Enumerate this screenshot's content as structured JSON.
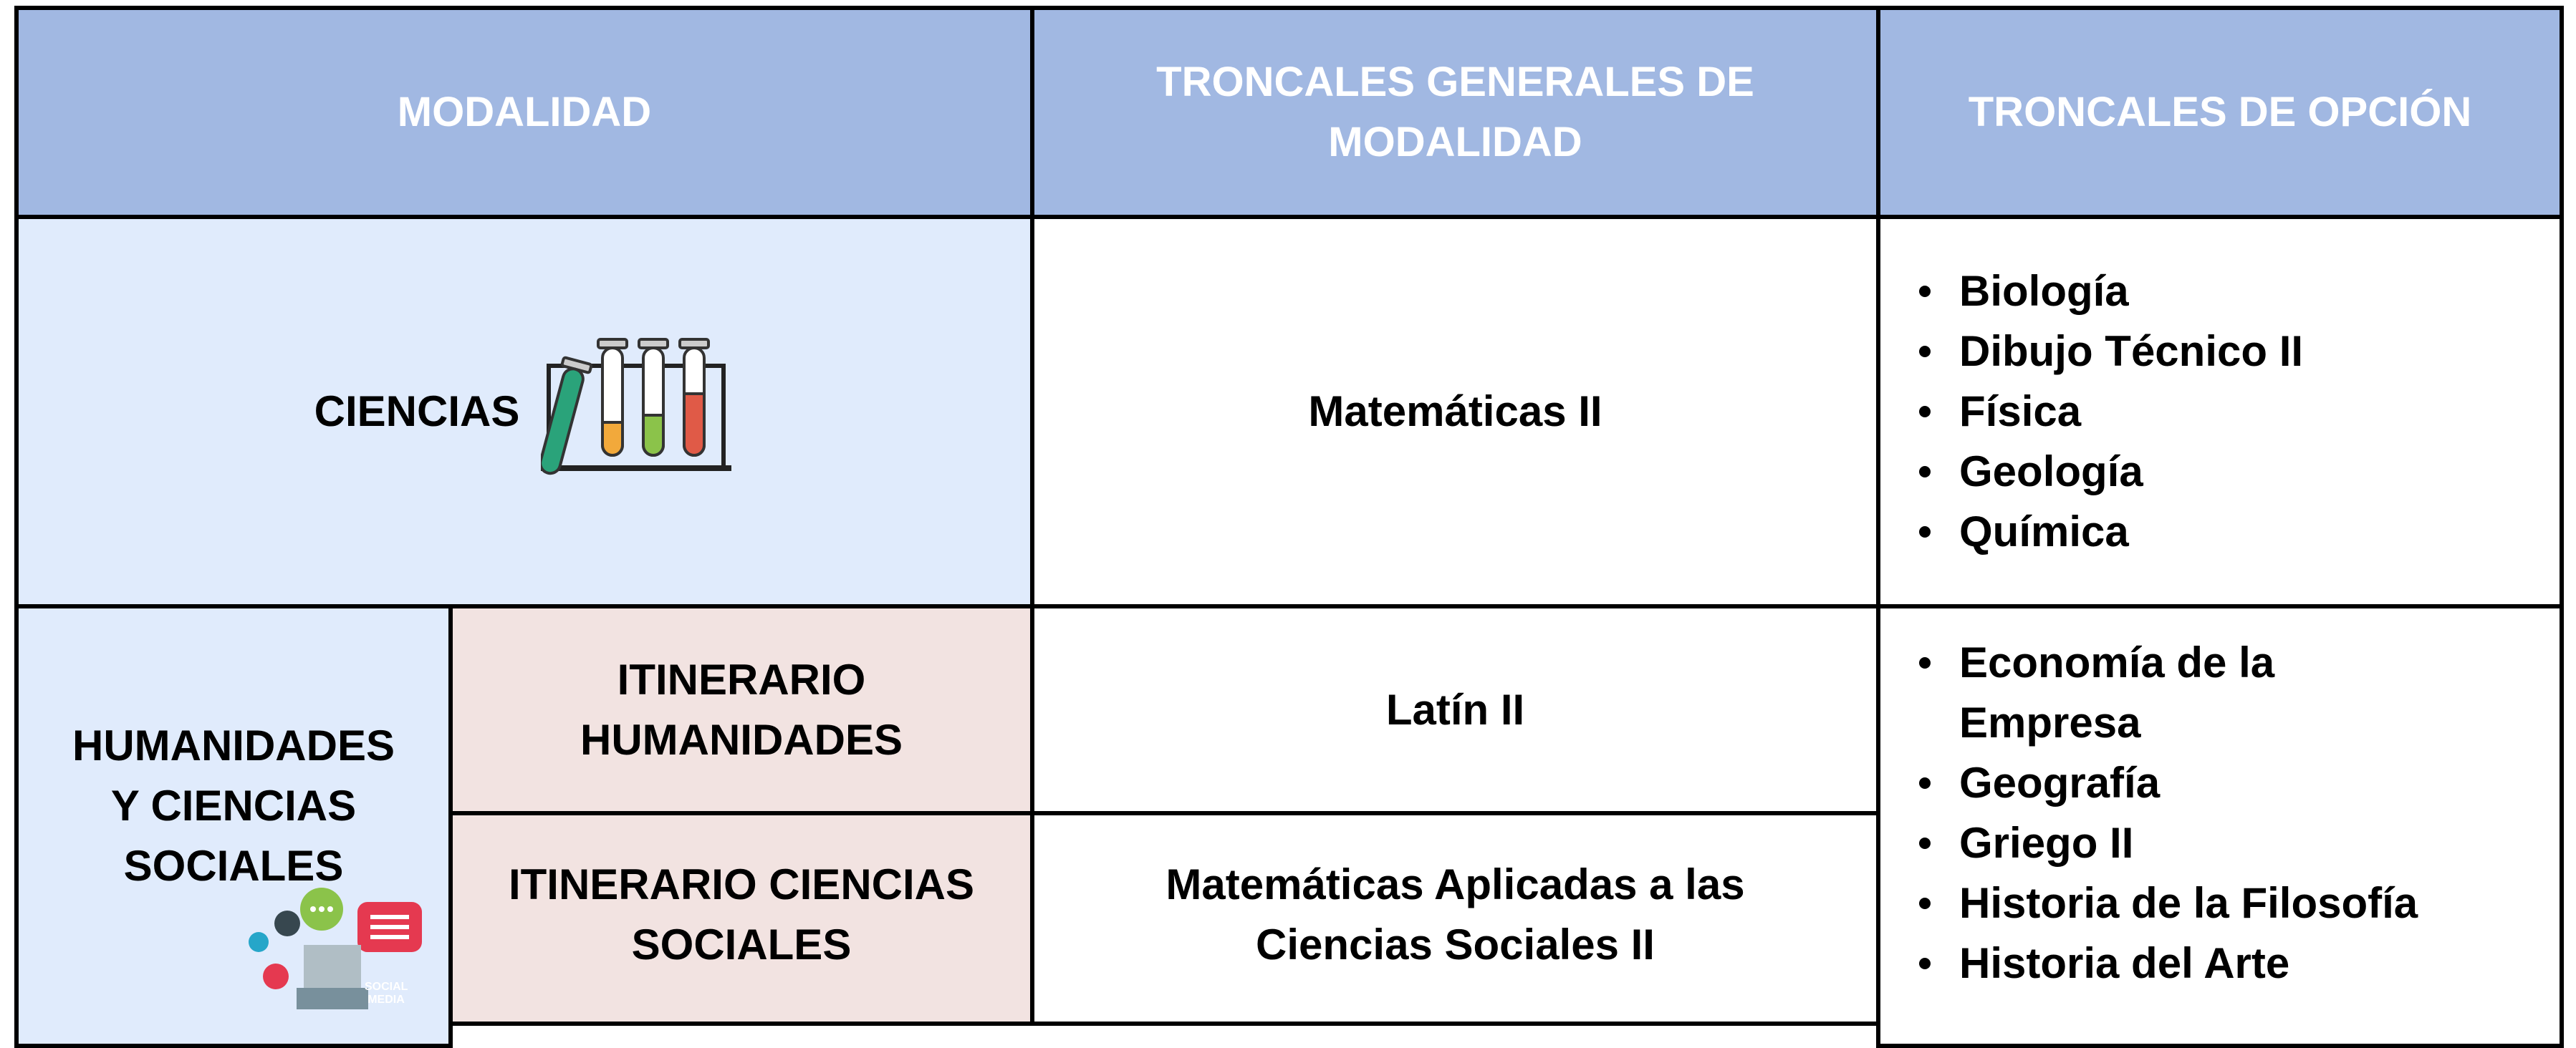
{
  "header": [
    "MODALIDAD",
    "TRONCALES GENERALES DE\nMODALIDAD",
    "TRONCALES DE OPCIÓN"
  ],
  "ciencias": {
    "modalidad": "CIENCIAS",
    "troncal": "Matemáticas II",
    "opcion": [
      "Biología",
      "Dibujo Técnico II",
      "Física",
      "Geología",
      "Química"
    ]
  },
  "humanidades": {
    "modalidad": "HUMANIDADES\nY CIENCIAS\nSOCIALES",
    "icon_label": "SOCIAL MEDIA",
    "itinerarios": [
      {
        "name": "ITINERARIO\nHUMANIDADES",
        "troncal": "Latín II"
      },
      {
        "name": "ITINERARIO CIENCIAS\nSOCIALES",
        "troncal": "Matemáticas Aplicadas a las\nCiencias Sociales II"
      }
    ],
    "opcion": [
      "Economía de la\nEmpresa",
      "Geografía",
      "Griego II",
      "Historia de la Filosofía",
      "Historia del Arte"
    ]
  }
}
